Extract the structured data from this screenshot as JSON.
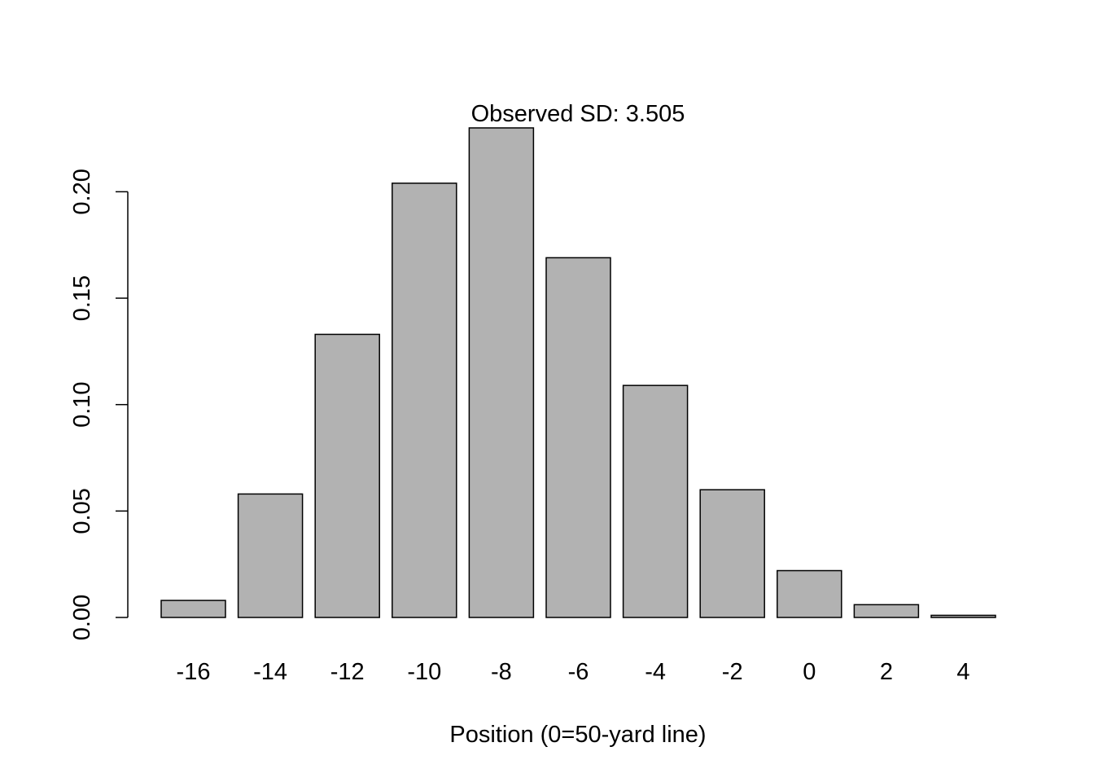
{
  "chart_data": {
    "type": "bar",
    "title": "Observed SD: 3.505",
    "xlabel": "Position (0=50-yard line)",
    "ylabel": "",
    "categories": [
      "-16",
      "-14",
      "-12",
      "-10",
      "-8",
      "-6",
      "-4",
      "-2",
      "0",
      "2",
      "4"
    ],
    "values": [
      0.008,
      0.058,
      0.133,
      0.204,
      0.23,
      0.169,
      0.109,
      0.06,
      0.022,
      0.006,
      0.001
    ],
    "ylim": [
      0,
      0.23
    ],
    "yticks": [
      "0.00",
      "0.05",
      "0.10",
      "0.15",
      "0.20"
    ],
    "grid": false,
    "bar_color": "#b2b2b2",
    "edge_color": "#000000"
  }
}
